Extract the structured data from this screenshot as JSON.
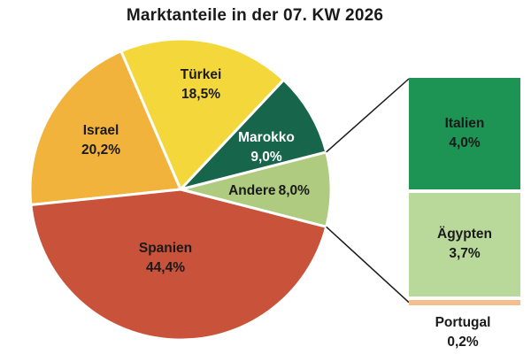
{
  "chart_data": {
    "type": "pie",
    "title": "Marktanteile in der 07. KW 2026",
    "unit": "%",
    "legend_position": "none",
    "grid": false,
    "slices": [
      {
        "name": "Andere",
        "value": 8.0,
        "pct": "8,0%",
        "color": "#AFCB7F",
        "label_color": "#1a1a1a"
      },
      {
        "name": "Marokko",
        "value": 9.0,
        "pct": "9,0%",
        "color": "#17654A",
        "label_color": "#ffffff"
      },
      {
        "name": "Türkei",
        "value": 18.5,
        "pct": "18,5%",
        "color": "#F4D83B",
        "label_color": "#1a1a1a"
      },
      {
        "name": "Israel",
        "value": 20.2,
        "pct": "20,2%",
        "color": "#F2B33D",
        "label_color": "#1a1a1a"
      },
      {
        "name": "Spanien",
        "value": 44.4,
        "pct": "44,4%",
        "color": "#C9523A",
        "label_color": "#1a1a1a"
      }
    ],
    "breakout": {
      "parent": "Andere",
      "segments": [
        {
          "name": "Italien",
          "value": 4.0,
          "pct": "4,0%",
          "color": "#1E9454",
          "label_color": "#1a1a1a"
        },
        {
          "name": "Ägypten",
          "value": 3.7,
          "pct": "3,7%",
          "color": "#B8D99A",
          "label_color": "#1a1a1a"
        },
        {
          "name": "Portugal",
          "value": 0.2,
          "pct": "0,2%",
          "color": "#F4BF8E",
          "label_color": "#1a1a1a"
        }
      ]
    },
    "connector_color": "#1a1a1a"
  }
}
